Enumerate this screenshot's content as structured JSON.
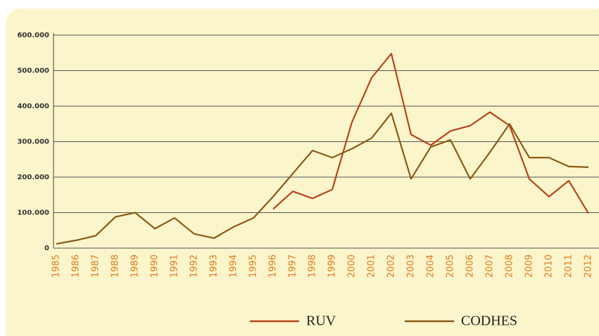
{
  "chart_data": {
    "type": "line",
    "categories": [
      "1985",
      "1986",
      "1987",
      "1988",
      "1989",
      "1990",
      "1991",
      "1992",
      "1993",
      "1994",
      "1995",
      "1996",
      "1997",
      "1998",
      "1999",
      "2000",
      "2001",
      "2002",
      "2003",
      "2004",
      "2005",
      "2006",
      "2007",
      "2008",
      "2009",
      "2010",
      "2011",
      "2012"
    ],
    "series": [
      {
        "name": "RUV",
        "color": "#b5451b",
        "values": [
          null,
          null,
          null,
          null,
          null,
          null,
          null,
          null,
          null,
          null,
          null,
          110000,
          160000,
          140000,
          165000,
          355000,
          480000,
          548000,
          320000,
          290000,
          330000,
          345000,
          383000,
          345000,
          195000,
          145000,
          190000,
          98000
        ]
      },
      {
        "name": "CODHES",
        "color": "#8a5a16",
        "values": [
          12000,
          22000,
          35000,
          88000,
          100000,
          55000,
          85000,
          40000,
          28000,
          60000,
          85000,
          145000,
          210000,
          275000,
          255000,
          280000,
          310000,
          380000,
          195000,
          285000,
          305000,
          195000,
          270000,
          350000,
          255000,
          255000,
          230000,
          228000
        ]
      }
    ],
    "ylim": [
      0,
      600000
    ],
    "yticks": [
      0,
      {
        "value": 100000,
        "label": "100.000"
      },
      {
        "value": 200000,
        "label": "200.000"
      },
      {
        "value": 300000,
        "label": "300.000"
      },
      {
        "value": 400000,
        "label": "400.000"
      },
      {
        "value": 500000,
        "label": "500.000"
      },
      {
        "value": 600000,
        "label": "600.000"
      }
    ],
    "grid": true,
    "legend": "bottom"
  }
}
